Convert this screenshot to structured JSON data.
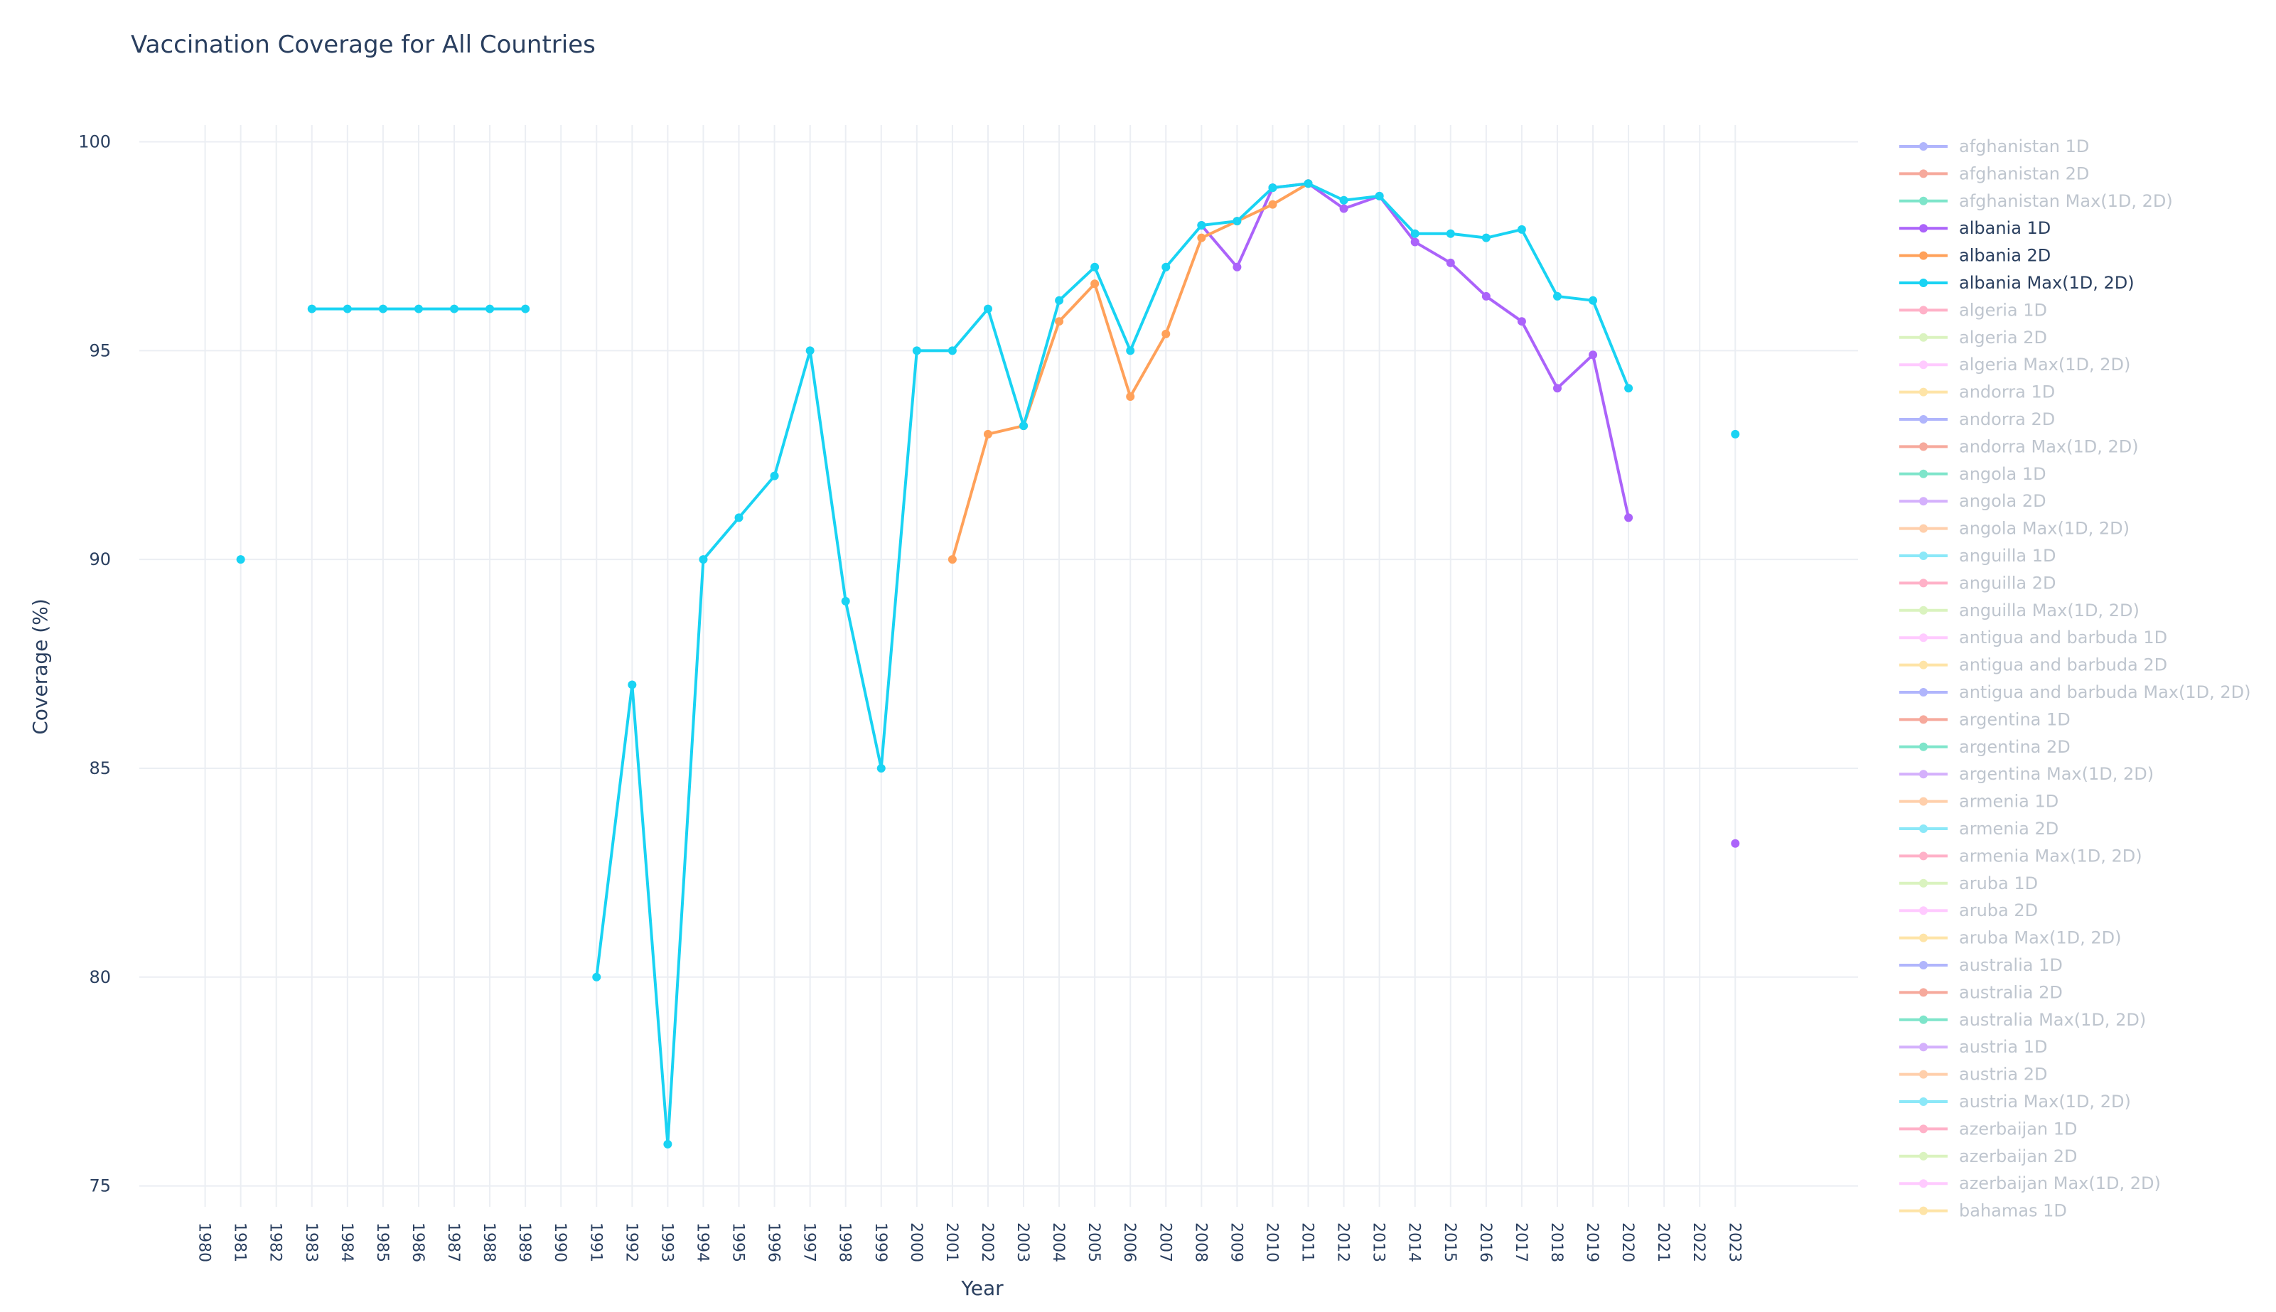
{
  "chart_data": {
    "type": "line",
    "title": "Vaccination Coverage for All Countries",
    "xlabel": "Year",
    "ylabel": "Coverage (%)",
    "ylim": [
      74.5,
      100.4
    ],
    "yticks": [
      75,
      80,
      85,
      90,
      95,
      100
    ],
    "x_categories": [
      "1980",
      "1981",
      "1982",
      "1983",
      "1984",
      "1985",
      "1986",
      "1987",
      "1988",
      "1989",
      "1990",
      "1991",
      "1992",
      "1993",
      "1994",
      "1995",
      "1996",
      "1997",
      "1998",
      "1999",
      "2000",
      "2001",
      "2002",
      "2003",
      "2004",
      "2005",
      "2006",
      "2007",
      "2008",
      "2009",
      "2010",
      "2011",
      "2012",
      "2013",
      "2014",
      "2015",
      "2016",
      "2017",
      "2018",
      "2019",
      "2020",
      "2021",
      "2022",
      "2023"
    ],
    "grid": true,
    "legend_position": "right",
    "series": [
      {
        "name": "albania 1D",
        "color": "#ab63fa",
        "x": [
          "2008",
          "2009",
          "2010",
          "2011",
          "2012",
          "2013",
          "2014",
          "2015",
          "2016",
          "2017",
          "2018",
          "2019",
          "2020",
          "2023"
        ],
        "y": [
          98.0,
          97.0,
          98.9,
          99.0,
          98.4,
          98.7,
          97.6,
          97.1,
          96.3,
          95.7,
          94.1,
          94.9,
          91.0,
          83.2
        ]
      },
      {
        "name": "albania 2D",
        "color": "#ffa15a",
        "x": [
          "2001",
          "2002",
          "2003",
          "2004",
          "2005",
          "2006",
          "2007",
          "2008",
          "2009",
          "2010",
          "2011"
        ],
        "y": [
          90.0,
          93.0,
          93.2,
          95.7,
          96.6,
          93.9,
          95.4,
          97.7,
          98.1,
          98.5,
          99.0
        ]
      },
      {
        "name": "albania Max(1D, 2D)",
        "color": "#19d3f3",
        "x": [
          "1981",
          "1983",
          "1984",
          "1985",
          "1986",
          "1987",
          "1988",
          "1989",
          "1991",
          "1992",
          "1993",
          "1994",
          "1995",
          "1996",
          "1997",
          "1998",
          "1999",
          "2000",
          "2001",
          "2002",
          "2003",
          "2004",
          "2005",
          "2006",
          "2007",
          "2008",
          "2009",
          "2010",
          "2011",
          "2012",
          "2013",
          "2014",
          "2015",
          "2016",
          "2017",
          "2018",
          "2019",
          "2020",
          "2023"
        ],
        "y": [
          90,
          96,
          96,
          96,
          96,
          96,
          96,
          96,
          80,
          87,
          76,
          90,
          91,
          92,
          95,
          89,
          85,
          95,
          95,
          96,
          93.2,
          96.2,
          97.0,
          95.0,
          97.0,
          98.0,
          98.1,
          98.9,
          99.0,
          98.6,
          98.7,
          97.8,
          97.8,
          97.7,
          97.9,
          96.3,
          96.2,
          94.1,
          93.0
        ]
      }
    ],
    "legend": [
      {
        "label": "afghanistan 1D",
        "color": "#636efa",
        "active": false
      },
      {
        "label": "afghanistan 2D",
        "color": "#ef553b",
        "active": false
      },
      {
        "label": "afghanistan Max(1D, 2D)",
        "color": "#00cc96",
        "active": false
      },
      {
        "label": "albania 1D",
        "color": "#ab63fa",
        "active": true
      },
      {
        "label": "albania 2D",
        "color": "#ffa15a",
        "active": true
      },
      {
        "label": "albania Max(1D, 2D)",
        "color": "#19d3f3",
        "active": true
      },
      {
        "label": "algeria 1D",
        "color": "#ff6692",
        "active": false
      },
      {
        "label": "algeria 2D",
        "color": "#b6e880",
        "active": false
      },
      {
        "label": "algeria Max(1D, 2D)",
        "color": "#ff97ff",
        "active": false
      },
      {
        "label": "andorra 1D",
        "color": "#fecb52",
        "active": false
      },
      {
        "label": "andorra 2D",
        "color": "#636efa",
        "active": false
      },
      {
        "label": "andorra Max(1D, 2D)",
        "color": "#ef553b",
        "active": false
      },
      {
        "label": "angola 1D",
        "color": "#00cc96",
        "active": false
      },
      {
        "label": "angola 2D",
        "color": "#ab63fa",
        "active": false
      },
      {
        "label": "angola Max(1D, 2D)",
        "color": "#ffa15a",
        "active": false
      },
      {
        "label": "anguilla 1D",
        "color": "#19d3f3",
        "active": false
      },
      {
        "label": "anguilla 2D",
        "color": "#ff6692",
        "active": false
      },
      {
        "label": "anguilla Max(1D, 2D)",
        "color": "#b6e880",
        "active": false
      },
      {
        "label": "antigua and barbuda 1D",
        "color": "#ff97ff",
        "active": false
      },
      {
        "label": "antigua and barbuda 2D",
        "color": "#fecb52",
        "active": false
      },
      {
        "label": "antigua and barbuda Max(1D, 2D)",
        "color": "#636efa",
        "active": false
      },
      {
        "label": "argentina 1D",
        "color": "#ef553b",
        "active": false
      },
      {
        "label": "argentina 2D",
        "color": "#00cc96",
        "active": false
      },
      {
        "label": "argentina Max(1D, 2D)",
        "color": "#ab63fa",
        "active": false
      },
      {
        "label": "armenia 1D",
        "color": "#ffa15a",
        "active": false
      },
      {
        "label": "armenia 2D",
        "color": "#19d3f3",
        "active": false
      },
      {
        "label": "armenia Max(1D, 2D)",
        "color": "#ff6692",
        "active": false
      },
      {
        "label": "aruba 1D",
        "color": "#b6e880",
        "active": false
      },
      {
        "label": "aruba 2D",
        "color": "#ff97ff",
        "active": false
      },
      {
        "label": "aruba Max(1D, 2D)",
        "color": "#fecb52",
        "active": false
      },
      {
        "label": "australia 1D",
        "color": "#636efa",
        "active": false
      },
      {
        "label": "australia 2D",
        "color": "#ef553b",
        "active": false
      },
      {
        "label": "australia Max(1D, 2D)",
        "color": "#00cc96",
        "active": false
      },
      {
        "label": "austria 1D",
        "color": "#ab63fa",
        "active": false
      },
      {
        "label": "austria 2D",
        "color": "#ffa15a",
        "active": false
      },
      {
        "label": "austria Max(1D, 2D)",
        "color": "#19d3f3",
        "active": false
      },
      {
        "label": "azerbaijan 1D",
        "color": "#ff6692",
        "active": false
      },
      {
        "label": "azerbaijan 2D",
        "color": "#b6e880",
        "active": false
      },
      {
        "label": "azerbaijan Max(1D, 2D)",
        "color": "#ff97ff",
        "active": false
      },
      {
        "label": "bahamas 1D",
        "color": "#fecb52",
        "active": false
      }
    ]
  }
}
